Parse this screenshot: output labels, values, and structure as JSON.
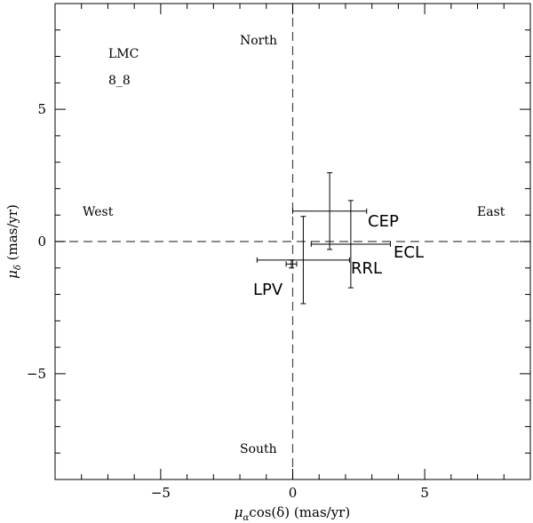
{
  "chart_data": {
    "type": "scatter",
    "xlabel_symbol": "μ",
    "xlabel_sub": "α",
    "xlabel_rest": "cos(δ) (mas/yr)",
    "ylabel_symbol": "μ",
    "ylabel_sub": "δ",
    "ylabel_rest": " (mas/yr)",
    "xlim": [
      -9,
      9
    ],
    "ylim": [
      -9,
      9
    ],
    "x_ticks": [
      -5,
      0,
      5
    ],
    "y_ticks": [
      -5,
      0,
      5
    ],
    "x_tick_labels": [
      "−5",
      "0",
      "5"
    ],
    "y_tick_labels": [
      "−5",
      "0",
      "5"
    ],
    "reference_lines": {
      "x": 0,
      "y": 0,
      "style": "dashed"
    },
    "annotations": {
      "field": "LMC",
      "field_id": "8_8",
      "north": "North",
      "south": "South",
      "west": "West",
      "east": "East"
    },
    "series": [
      {
        "name": "CEP",
        "x": 1.4,
        "y": 1.15,
        "xerr_low": 1.4,
        "xerr_high": 1.4,
        "yerr_low": 1.45,
        "yerr_high": 1.45
      },
      {
        "name": "ECL",
        "x": 2.2,
        "y": -0.1,
        "xerr_low": 1.5,
        "xerr_high": 1.5,
        "yerr_low": 1.65,
        "yerr_high": 1.65
      },
      {
        "name": "RRL",
        "x": 0.4,
        "y": -0.7,
        "xerr_low": 1.75,
        "xerr_high": 1.75,
        "yerr_low": 1.65,
        "yerr_high": 1.65
      },
      {
        "name": "LPV",
        "x": -0.05,
        "y": -0.85,
        "xerr_low": 0.2,
        "xerr_high": 0.2,
        "yerr_low": 0.15,
        "yerr_high": 0.15
      }
    ]
  }
}
